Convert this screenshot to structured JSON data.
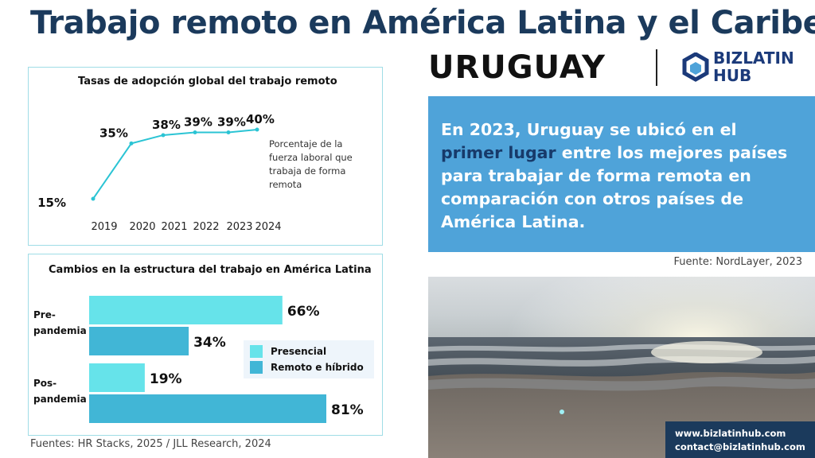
{
  "header": {
    "title": "Trabajo remoto en América Latina y el Caribe:",
    "country": "URUGUAY",
    "logo_line1": "BIZLATIN",
    "logo_line2": "HUB"
  },
  "info": {
    "pre": "En 2023, Uruguay se ubicó en el ",
    "highlight": "primer lugar",
    "post": " entre los mejores países para trabajar de forma remota en comparación con otros países de América Latina."
  },
  "sources": {
    "right": "Fuente: NordLayer, 2023",
    "bottom": "Fuentes: HR Stacks, 2025 / JLL Research, 2024"
  },
  "contact": {
    "web": "www.bizlatinhub.com",
    "email": "contact@bizlatinhub.com"
  },
  "colors": {
    "title": "#1b3a5c",
    "accent_blue": "#4fa3d9",
    "line": "#2bc4d4",
    "presencial": "#66e3ea",
    "remoto": "#41b6d6",
    "logo": "#1b3a7a"
  },
  "chart_data": [
    {
      "type": "line",
      "title": "Tasas de adopción global del trabajo remoto",
      "x": [
        "2019",
        "2020",
        "2021",
        "2022",
        "2023",
        "2024"
      ],
      "values": [
        15,
        35,
        38,
        39,
        39,
        40
      ],
      "labels": [
        "15%",
        "35%",
        "38%",
        "39%",
        "39%",
        "40%"
      ],
      "annotation": "Porcentaje de la fuerza laboral que trabaja de forma remota",
      "grid": false
    },
    {
      "type": "bar",
      "orientation": "horizontal",
      "title": "Cambios en la estructura del trabajo en América Latina",
      "categories": [
        "Pre-pandemia",
        "Pos-pandemia"
      ],
      "category_lines": [
        [
          "Pre-",
          "pandemia"
        ],
        [
          "Pos-",
          "pandemia"
        ]
      ],
      "series": [
        {
          "name": "Presencial",
          "values": [
            66,
            19
          ],
          "labels": [
            "66%",
            "19%"
          ]
        },
        {
          "name": "Remoto e híbrido",
          "values": [
            34,
            81
          ],
          "labels": [
            "34%",
            "81%"
          ]
        }
      ],
      "legend": "right",
      "xlim": [
        0,
        81
      ]
    }
  ]
}
